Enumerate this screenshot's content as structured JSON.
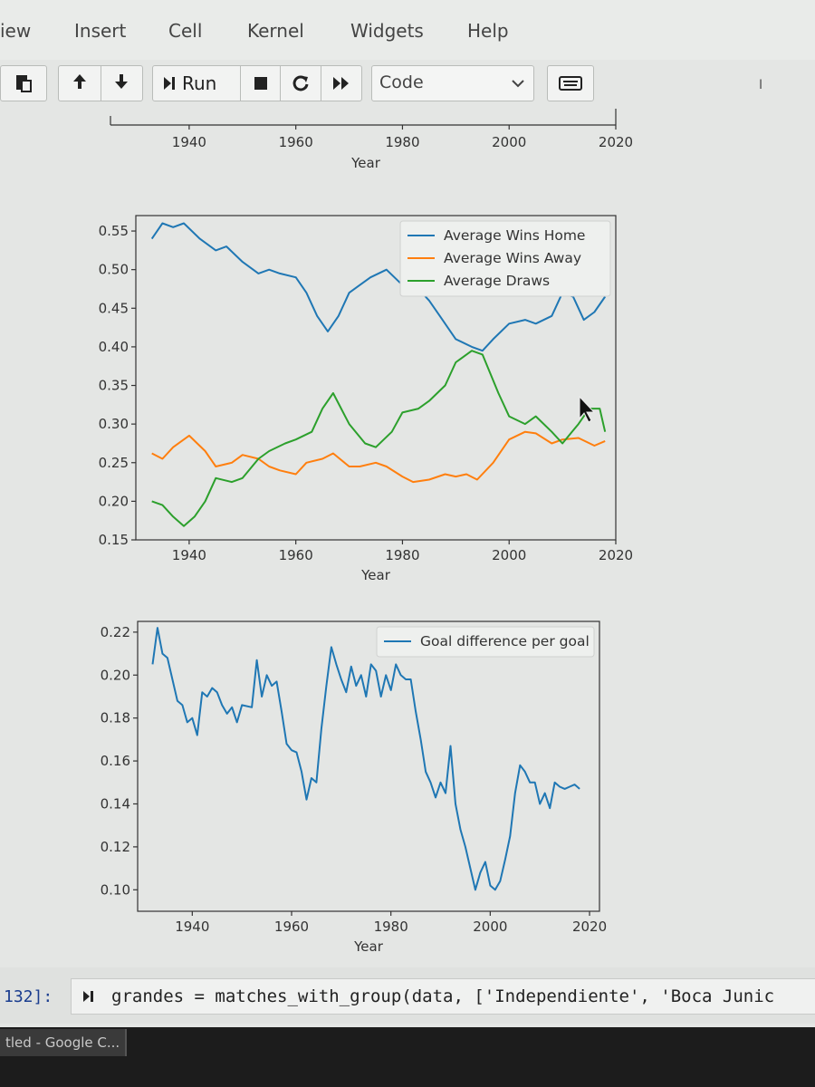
{
  "menu": [
    "iew",
    "Insert",
    "Cell",
    "Kernel",
    "Widgets",
    "Help"
  ],
  "toolbar": {
    "run_label": "Run",
    "cell_type": "Code",
    "kernel_indicator": "I"
  },
  "top_chart_fragment": {
    "type": "line",
    "xticks": [
      "1940",
      "1960",
      "1980",
      "2000",
      "2020"
    ],
    "xlabel": "Year"
  },
  "chart_data": [
    {
      "type": "line",
      "title": "",
      "xlabel": "Year",
      "ylabel": "",
      "xlim": [
        1930,
        2020
      ],
      "ylim": [
        0.15,
        0.57
      ],
      "xticks": [
        "1940",
        "1960",
        "1980",
        "2000",
        "2020"
      ],
      "yticks": [
        "0.15",
        "0.20",
        "0.25",
        "0.30",
        "0.35",
        "0.40",
        "0.45",
        "0.50",
        "0.55"
      ],
      "legend_position": "top-right",
      "series": [
        {
          "name": "Average Wins Home",
          "color": "#1f77b4",
          "x": [
            1933,
            1935,
            1937,
            1939,
            1942,
            1945,
            1947,
            1950,
            1953,
            1955,
            1957,
            1960,
            1962,
            1964,
            1966,
            1968,
            1970,
            1972,
            1974,
            1977,
            1980,
            1983,
            1985,
            1987,
            1990,
            1993,
            1995,
            1997,
            2000,
            2003,
            2005,
            2008,
            2010,
            2012,
            2014,
            2016,
            2018
          ],
          "y": [
            0.54,
            0.56,
            0.555,
            0.56,
            0.54,
            0.525,
            0.53,
            0.51,
            0.495,
            0.5,
            0.495,
            0.49,
            0.47,
            0.44,
            0.42,
            0.44,
            0.47,
            0.48,
            0.49,
            0.5,
            0.48,
            0.475,
            0.46,
            0.44,
            0.41,
            0.4,
            0.395,
            0.41,
            0.43,
            0.435,
            0.43,
            0.44,
            0.47,
            0.465,
            0.435,
            0.445,
            0.465
          ]
        },
        {
          "name": "Average Wins Away",
          "color": "#ff7f0e",
          "x": [
            1933,
            1935,
            1937,
            1940,
            1943,
            1945,
            1948,
            1950,
            1953,
            1955,
            1957,
            1960,
            1962,
            1965,
            1967,
            1970,
            1972,
            1975,
            1977,
            1980,
            1982,
            1985,
            1988,
            1990,
            1992,
            1994,
            1997,
            2000,
            2003,
            2005,
            2008,
            2010,
            2013,
            2016,
            2018
          ],
          "y": [
            0.262,
            0.255,
            0.27,
            0.285,
            0.265,
            0.245,
            0.25,
            0.26,
            0.255,
            0.245,
            0.24,
            0.235,
            0.25,
            0.255,
            0.262,
            0.245,
            0.245,
            0.25,
            0.245,
            0.232,
            0.225,
            0.228,
            0.235,
            0.232,
            0.235,
            0.228,
            0.25,
            0.28,
            0.29,
            0.288,
            0.275,
            0.28,
            0.282,
            0.272,
            0.278
          ]
        },
        {
          "name": "Average Draws",
          "color": "#2ca02c",
          "x": [
            1933,
            1935,
            1937,
            1939,
            1941,
            1943,
            1945,
            1948,
            1950,
            1953,
            1955,
            1958,
            1960,
            1963,
            1965,
            1967,
            1970,
            1973,
            1975,
            1978,
            1980,
            1983,
            1985,
            1988,
            1990,
            1993,
            1995,
            1998,
            2000,
            2003,
            2005,
            2008,
            2010,
            2013,
            2015,
            2017,
            2018
          ],
          "y": [
            0.2,
            0.195,
            0.18,
            0.168,
            0.18,
            0.2,
            0.23,
            0.225,
            0.23,
            0.255,
            0.265,
            0.275,
            0.28,
            0.29,
            0.32,
            0.34,
            0.3,
            0.275,
            0.27,
            0.29,
            0.315,
            0.32,
            0.33,
            0.35,
            0.38,
            0.395,
            0.39,
            0.34,
            0.31,
            0.3,
            0.31,
            0.29,
            0.275,
            0.3,
            0.32,
            0.32,
            0.29
          ]
        }
      ]
    },
    {
      "type": "line",
      "title": "",
      "xlabel": "Year",
      "ylabel": "",
      "xlim": [
        1929,
        2022
      ],
      "ylim": [
        0.09,
        0.225
      ],
      "xticks": [
        "1940",
        "1960",
        "1980",
        "2000",
        "2020"
      ],
      "yticks": [
        "0.10",
        "0.12",
        "0.14",
        "0.16",
        "0.18",
        "0.20",
        "0.22"
      ],
      "legend_position": "top-right",
      "series": [
        {
          "name": "Goal difference per goal",
          "color": "#1f77b4",
          "x": [
            1932,
            1933,
            1934,
            1935,
            1936,
            1937,
            1938,
            1939,
            1940,
            1941,
            1942,
            1943,
            1944,
            1945,
            1946,
            1947,
            1948,
            1949,
            1950,
            1952,
            1953,
            1954,
            1955,
            1956,
            1957,
            1958,
            1959,
            1960,
            1961,
            1962,
            1963,
            1964,
            1965,
            1966,
            1967,
            1968,
            1969,
            1970,
            1971,
            1972,
            1973,
            1974,
            1975,
            1976,
            1977,
            1978,
            1979,
            1980,
            1981,
            1982,
            1983,
            1984,
            1985,
            1986,
            1987,
            1988,
            1989,
            1990,
            1991,
            1992,
            1993,
            1994,
            1995,
            1996,
            1997,
            1998,
            1999,
            2000,
            2001,
            2002,
            2003,
            2004,
            2005,
            2006,
            2007,
            2008,
            2009,
            2010,
            2011,
            2012,
            2013,
            2014,
            2015,
            2016,
            2017,
            2018
          ],
          "y": [
            0.205,
            0.222,
            0.21,
            0.208,
            0.198,
            0.188,
            0.186,
            0.178,
            0.18,
            0.172,
            0.192,
            0.19,
            0.194,
            0.192,
            0.186,
            0.182,
            0.185,
            0.178,
            0.186,
            0.185,
            0.207,
            0.19,
            0.2,
            0.195,
            0.197,
            0.183,
            0.168,
            0.165,
            0.164,
            0.155,
            0.142,
            0.152,
            0.15,
            0.175,
            0.195,
            0.213,
            0.205,
            0.198,
            0.192,
            0.204,
            0.195,
            0.2,
            0.19,
            0.205,
            0.202,
            0.19,
            0.2,
            0.193,
            0.205,
            0.2,
            0.198,
            0.198,
            0.183,
            0.17,
            0.155,
            0.15,
            0.143,
            0.15,
            0.145,
            0.167,
            0.14,
            0.128,
            0.12,
            0.11,
            0.1,
            0.108,
            0.113,
            0.102,
            0.1,
            0.104,
            0.114,
            0.125,
            0.145,
            0.158,
            0.155,
            0.15,
            0.15,
            0.14,
            0.145,
            0.138,
            0.15,
            0.148,
            0.147,
            0.148,
            0.149,
            0.147
          ]
        }
      ]
    }
  ],
  "code_cell": {
    "prompt": "132]:",
    "code": "grandes = matches_with_group(data, ['Independiente', 'Boca Junic"
  },
  "taskbar": {
    "item": "tled - Google C..."
  }
}
